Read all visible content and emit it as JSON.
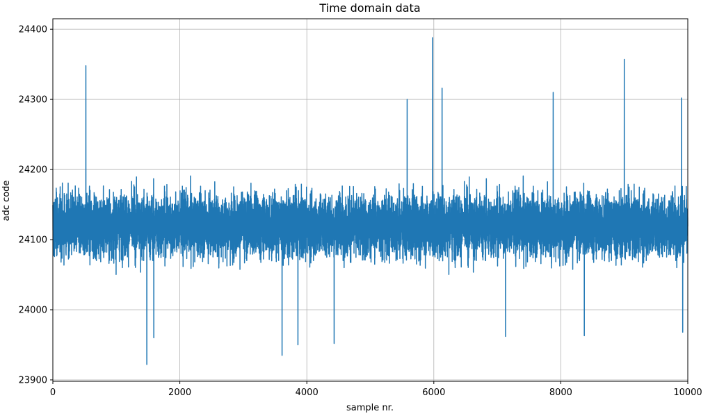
{
  "chart_data": {
    "type": "line",
    "title": "Time domain data",
    "xlabel": "sample nr.",
    "ylabel": "adc code",
    "xlim": [
      0,
      10000
    ],
    "ylim": [
      23898,
      24415
    ],
    "xticks": [
      0,
      2000,
      4000,
      6000,
      8000,
      10000
    ],
    "yticks": [
      23900,
      24000,
      24100,
      24200,
      24300,
      24400
    ],
    "grid": true,
    "series_color": "#1f77b4",
    "n_samples": 10000,
    "typical_range": [
      24040,
      24200
    ],
    "mean": 24120,
    "extremes": [
      {
        "x": 520,
        "y": 24348
      },
      {
        "x": 1480,
        "y": 23922
      },
      {
        "x": 1590,
        "y": 23960
      },
      {
        "x": 3610,
        "y": 23935
      },
      {
        "x": 3860,
        "y": 23950
      },
      {
        "x": 4430,
        "y": 23952
      },
      {
        "x": 5580,
        "y": 24300
      },
      {
        "x": 5980,
        "y": 24388
      },
      {
        "x": 6130,
        "y": 24316
      },
      {
        "x": 7130,
        "y": 23962
      },
      {
        "x": 7880,
        "y": 24310
      },
      {
        "x": 8370,
        "y": 23963
      },
      {
        "x": 9000,
        "y": 24357
      },
      {
        "x": 9900,
        "y": 24302
      },
      {
        "x": 9920,
        "y": 23968
      }
    ]
  }
}
